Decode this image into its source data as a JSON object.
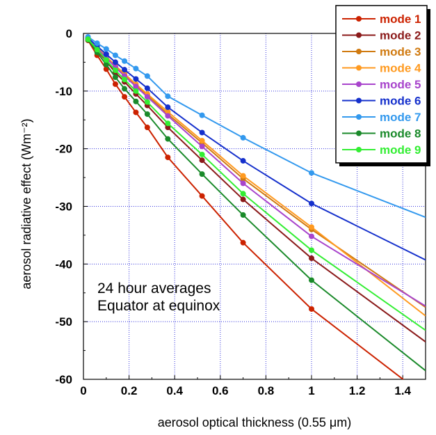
{
  "chart_data": {
    "type": "line",
    "xlabel": "aerosol optical thickness (0.55 μm)",
    "ylabel": "aerosol radiative effect (Wm⁻²)",
    "xlim": [
      0,
      1.5
    ],
    "ylim": [
      -60,
      0
    ],
    "xticks": [
      "0",
      "0.2",
      "0.4",
      "0.6",
      "0.8",
      "1",
      "1.2",
      "1.4"
    ],
    "yticks": [
      "0",
      "-10",
      "-20",
      "-30",
      "-40",
      "-50",
      "-60"
    ],
    "grid": true,
    "legend_position": "top-right",
    "annotations": [
      "24 hour averages",
      "Equator at equinox"
    ],
    "x": [
      0.02,
      0.06,
      0.1,
      0.14,
      0.18,
      0.23,
      0.28,
      0.37,
      0.52,
      0.7,
      1.0
    ],
    "series": [
      {
        "name": "mode 1",
        "color": "#cc2200",
        "values": [
          -1.2,
          -3.8,
          -6.2,
          -8.8,
          -11.0,
          -13.7,
          -16.3,
          -21.5,
          -28.2,
          -36.3,
          -47.8
        ],
        "ext": -63
      },
      {
        "name": "mode 2",
        "color": "#8b1a1a",
        "values": [
          -1.0,
          -3.0,
          -4.8,
          -6.8,
          -8.4,
          -10.5,
          -12.5,
          -16.3,
          -22.0,
          -28.8,
          -39.0
        ],
        "ext": -53.5
      },
      {
        "name": "mode 3",
        "color": "#d07a10",
        "values": [
          -0.9,
          -2.6,
          -4.1,
          -5.8,
          -7.2,
          -9.1,
          -10.7,
          -14.0,
          -19.0,
          -25.2,
          -34.0
        ],
        "ext": -47.5
      },
      {
        "name": "mode 4",
        "color": "#ff9a20",
        "values": [
          -0.9,
          -2.5,
          -4.0,
          -5.6,
          -7.0,
          -8.8,
          -10.5,
          -13.6,
          -18.6,
          -24.7,
          -33.6
        ],
        "ext": -49.0
      },
      {
        "name": "mode 5",
        "color": "#a844cc",
        "values": [
          -0.9,
          -2.6,
          -4.2,
          -5.9,
          -7.4,
          -9.2,
          -11.0,
          -14.3,
          -19.6,
          -26.0,
          -35.2
        ],
        "ext": -47.3
      },
      {
        "name": "mode 6",
        "color": "#1530cc",
        "values": [
          -0.8,
          -2.2,
          -3.6,
          -5.0,
          -6.3,
          -7.9,
          -9.5,
          -12.8,
          -17.2,
          -22.1,
          -29.5
        ],
        "ext": -39.3
      },
      {
        "name": "mode 7",
        "color": "#3399ee",
        "values": [
          -0.6,
          -1.7,
          -2.7,
          -3.8,
          -4.8,
          -6.1,
          -7.4,
          -10.9,
          -14.2,
          -18.1,
          -24.2
        ],
        "ext": -31.9
      },
      {
        "name": "mode 8",
        "color": "#1a8a2a",
        "values": [
          -1.1,
          -3.3,
          -5.4,
          -7.6,
          -9.6,
          -11.8,
          -14.0,
          -18.3,
          -24.4,
          -31.5,
          -42.8
        ],
        "ext": -58.5
      },
      {
        "name": "mode 9",
        "color": "#33ee33",
        "values": [
          -1.0,
          -2.8,
          -4.6,
          -6.4,
          -8.0,
          -10.0,
          -11.9,
          -15.6,
          -21.0,
          -27.8,
          -37.6
        ],
        "ext": -51.5
      }
    ]
  }
}
